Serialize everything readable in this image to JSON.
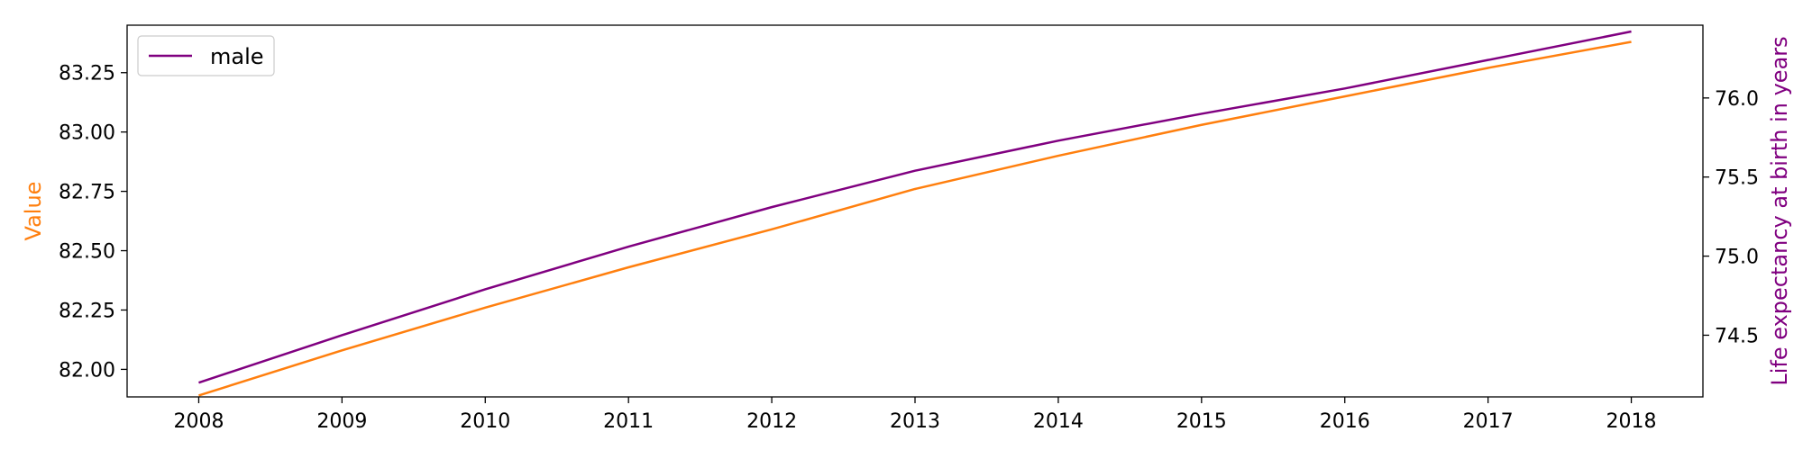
{
  "chart_data": {
    "type": "line",
    "title": "",
    "x": [
      2008,
      2009,
      2010,
      2011,
      2012,
      2013,
      2014,
      2015,
      2016,
      2017,
      2018
    ],
    "xlim": [
      2007.5,
      2018.5
    ],
    "xticks": [
      "2008",
      "2009",
      "2010",
      "2011",
      "2012",
      "2013",
      "2014",
      "2015",
      "2016",
      "2017",
      "2018"
    ],
    "left_axis": {
      "label": "Value",
      "label_color": "#ff7f0e",
      "ylim": [
        81.884,
        83.45
      ],
      "ticks": [
        "82.00",
        "82.25",
        "82.50",
        "82.75",
        "83.00",
        "83.25"
      ],
      "tick_values": [
        82.0,
        82.25,
        82.5,
        82.75,
        83.0,
        83.25
      ]
    },
    "right_axis": {
      "label": "Life expectancy at birth in years",
      "label_color": "#800080",
      "ylim": [
        74.11,
        76.46
      ],
      "ticks": [
        "74.5",
        "75.0",
        "75.5",
        "76.0"
      ],
      "tick_values": [
        74.5,
        75.0,
        75.5,
        76.0
      ]
    },
    "series": [
      {
        "axis": "left",
        "color": "#ff7f0e",
        "values": [
          81.89,
          82.08,
          82.26,
          82.43,
          82.59,
          82.76,
          82.9,
          83.03,
          83.15,
          83.27,
          83.38
        ]
      },
      {
        "name": "male",
        "axis": "right",
        "color": "#800080",
        "values": [
          74.2,
          74.5,
          74.79,
          75.06,
          75.31,
          75.54,
          75.73,
          75.9,
          76.06,
          76.24,
          76.42
        ]
      }
    ],
    "legend": {
      "position": "top-left",
      "entries": [
        "male"
      ]
    },
    "grid": false
  }
}
